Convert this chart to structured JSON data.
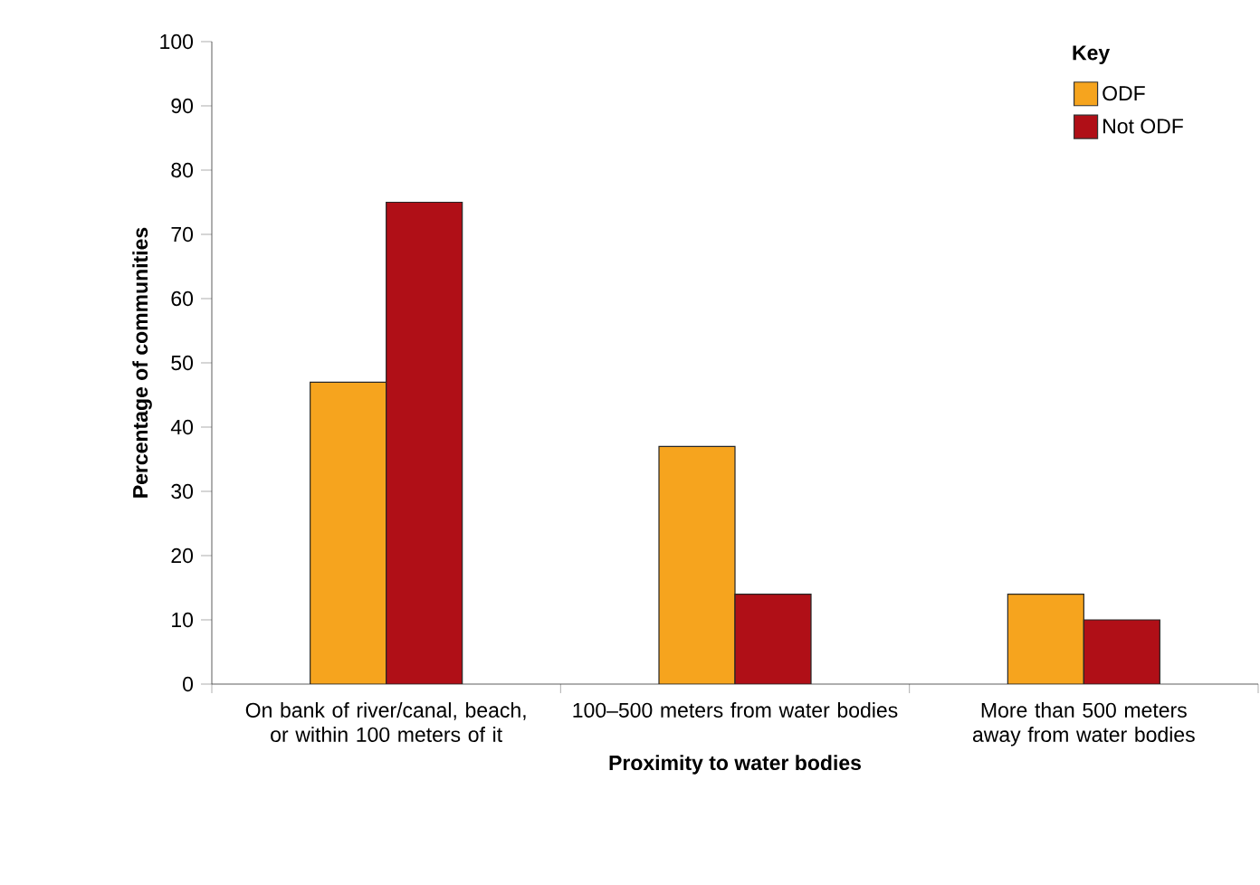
{
  "chart_data": {
    "type": "bar",
    "xlabel": "Proximity to water bodies",
    "ylabel": "Percentage of communities",
    "categories": [
      "On bank of river/canal, beach, or within 100 meters of it",
      "100–500 meters from water bodies",
      "More than 500 meters away from water bodies"
    ],
    "series": [
      {
        "name": "ODF",
        "color": "#f6a41e",
        "values": [
          47,
          37,
          14
        ]
      },
      {
        "name": "Not ODF",
        "color": "#b00f17",
        "values": [
          75,
          14,
          10
        ]
      }
    ],
    "ylim": [
      0,
      100
    ],
    "yticks": [
      0,
      10,
      20,
      30,
      40,
      50,
      60,
      70,
      80,
      90,
      100
    ],
    "legend": "top right",
    "legend_title": "Key"
  }
}
